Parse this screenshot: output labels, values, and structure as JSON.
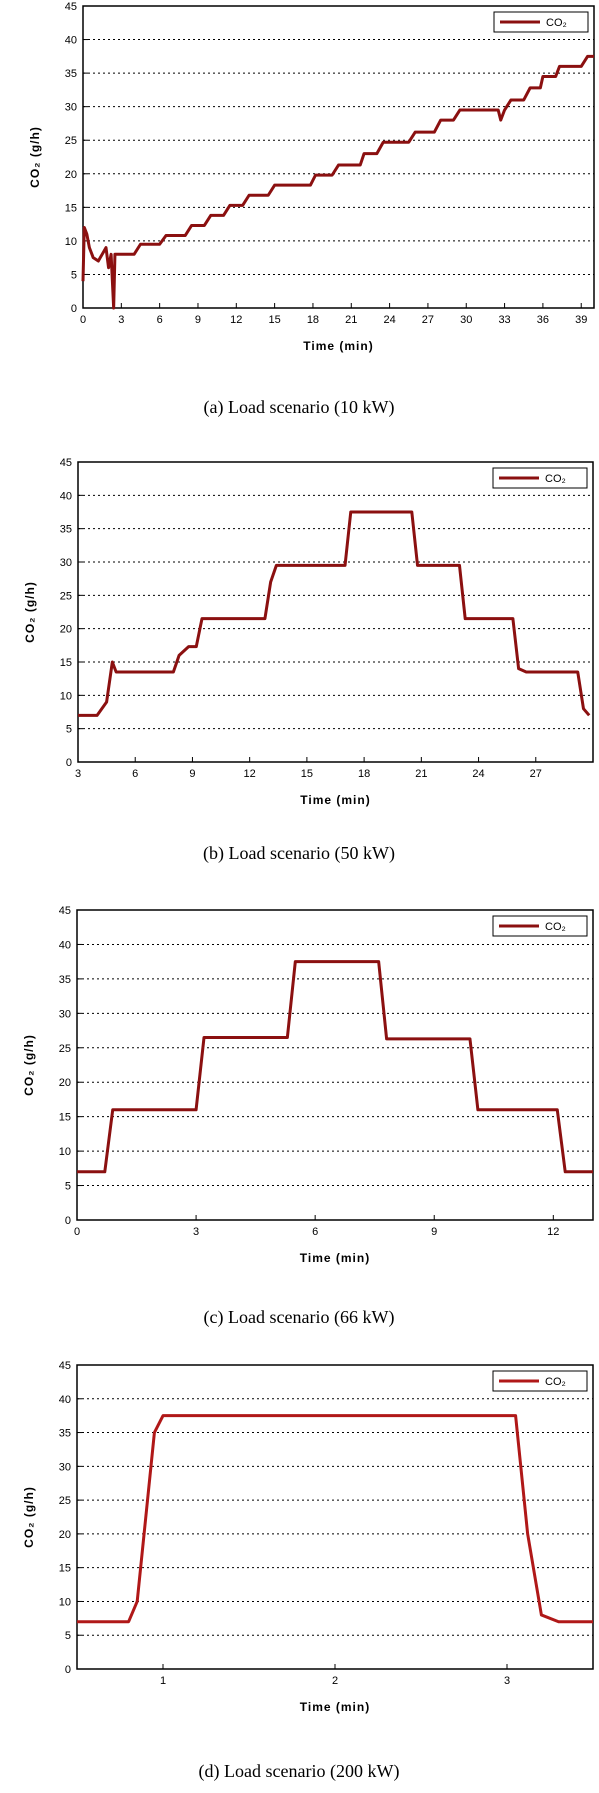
{
  "chart_data": [
    {
      "type": "line",
      "caption": "(a) Load scenario (10 kW)",
      "xlabel": "Time (min)",
      "ylabel": "CO₂ (g/h)",
      "xlim": [
        0,
        40
      ],
      "xticks": [
        0,
        3,
        6,
        9,
        12,
        15,
        18,
        21,
        24,
        27,
        30,
        33,
        36,
        39
      ],
      "ylim": [
        0,
        45
      ],
      "yticks": [
        0,
        5,
        10,
        15,
        20,
        25,
        30,
        35,
        40,
        45
      ],
      "grid": true,
      "legend": "upper right",
      "series": [
        {
          "name": "CO₂",
          "color": "#8b1010",
          "x": [
            0,
            0.1,
            0.3,
            0.5,
            0.8,
            1.2,
            1.5,
            1.8,
            2,
            2.2,
            2.4,
            2.5,
            4,
            4.5,
            6,
            6.5,
            8,
            8.5,
            9.5,
            10,
            11,
            11.5,
            12.5,
            13,
            14.5,
            15,
            17.8,
            18.2,
            19.5,
            20,
            21.7,
            22,
            23,
            23.5,
            25.5,
            26,
            27.5,
            28,
            29,
            29.5,
            32.5,
            32.7,
            33,
            33.5,
            34.5,
            35,
            35.8,
            36,
            37,
            37.3,
            39,
            39.5,
            40
          ],
          "values": [
            4,
            12,
            11,
            9,
            7.5,
            7,
            8,
            9,
            6,
            8,
            0,
            8,
            8,
            9.5,
            9.5,
            10.8,
            10.8,
            12.3,
            12.3,
            13.8,
            13.8,
            15.3,
            15.3,
            16.8,
            16.8,
            18.3,
            18.3,
            19.8,
            19.8,
            21.3,
            21.3,
            23,
            23,
            24.7,
            24.7,
            26.2,
            26.2,
            28,
            28,
            29.5,
            29.5,
            28,
            29.5,
            31,
            31,
            32.8,
            32.8,
            34.5,
            34.5,
            36,
            36,
            37.5,
            37.5
          ]
        }
      ]
    },
    {
      "type": "line",
      "caption": "(b) Load scenario (50 kW)",
      "xlabel": "Time (min)",
      "ylabel": "CO₂ (g/h)",
      "xlim": [
        3,
        30
      ],
      "xticks": [
        3,
        6,
        9,
        12,
        15,
        18,
        21,
        24,
        27
      ],
      "ylim": [
        0,
        45
      ],
      "yticks": [
        0,
        5,
        10,
        15,
        20,
        25,
        30,
        35,
        40,
        45
      ],
      "grid": true,
      "legend": "upper right",
      "series": [
        {
          "name": "CO₂",
          "color": "#8b1010",
          "x": [
            3,
            4,
            4.5,
            4.8,
            5,
            8,
            8.3,
            8.8,
            9.2,
            9.5,
            12.8,
            13.1,
            13.4,
            17,
            17.3,
            20.5,
            20.8,
            23,
            23.3,
            25.8,
            26.1,
            26.5,
            29.2,
            29.5,
            29.8
          ],
          "values": [
            7,
            7,
            9,
            15,
            13.5,
            13.5,
            16,
            17.3,
            17.3,
            21.5,
            21.5,
            27,
            29.5,
            29.5,
            37.5,
            37.5,
            29.5,
            29.5,
            21.5,
            21.5,
            14,
            13.5,
            13.5,
            8,
            7
          ]
        }
      ]
    },
    {
      "type": "line",
      "caption": "(c) Load scenario (66 kW)",
      "xlabel": "Time (min)",
      "ylabel": "CO₂ (g/h)",
      "xlim": [
        0,
        13
      ],
      "xticks": [
        0,
        3,
        6,
        9,
        12
      ],
      "ylim": [
        0,
        45
      ],
      "yticks": [
        0,
        5,
        10,
        15,
        20,
        25,
        30,
        35,
        40,
        45
      ],
      "grid": true,
      "legend": "upper right",
      "series": [
        {
          "name": "CO₂",
          "color": "#8b1010",
          "x": [
            0,
            0.7,
            0.9,
            3,
            3.2,
            5.3,
            5.5,
            7.6,
            7.8,
            9.9,
            10.1,
            12.1,
            12.3,
            13
          ],
          "values": [
            7,
            7,
            16,
            16,
            26.5,
            26.5,
            37.5,
            37.5,
            26.3,
            26.3,
            16,
            16,
            7,
            7
          ]
        }
      ]
    },
    {
      "type": "line",
      "caption": "(d) Load scenario (200 kW)",
      "xlabel": "Time (min)",
      "ylabel": "CO₂ (g/h)",
      "xlim": [
        0.5,
        3.5
      ],
      "xticks": [
        1,
        2,
        3
      ],
      "ylim": [
        0,
        45
      ],
      "yticks": [
        0,
        5,
        10,
        15,
        20,
        25,
        30,
        35,
        40,
        45
      ],
      "grid": true,
      "legend": "upper right",
      "series": [
        {
          "name": "CO₂",
          "color": "#b01818",
          "x": [
            0.5,
            0.8,
            0.85,
            0.95,
            1.0,
            2,
            3.05,
            3.12,
            3.2,
            3.3,
            3.5
          ],
          "values": [
            7,
            7,
            10,
            35,
            37.5,
            37.5,
            37.5,
            20,
            8,
            7,
            7
          ]
        }
      ]
    }
  ]
}
